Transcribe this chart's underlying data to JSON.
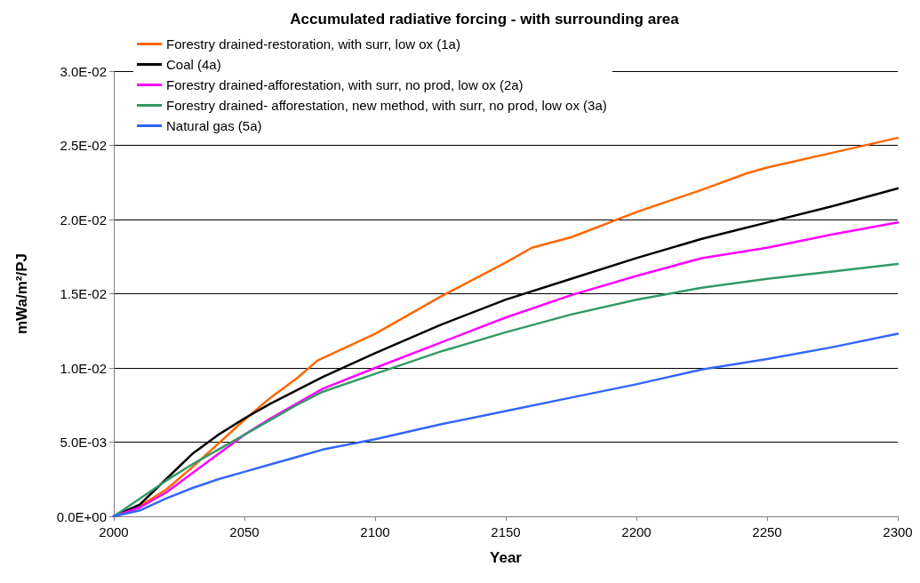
{
  "chart_data": {
    "type": "line",
    "title": "Accumulated radiative forcing - with surrounding area",
    "xlabel": "Year",
    "ylabel": "mWa/m²/PJ",
    "x": [
      2000,
      2010,
      2020,
      2030,
      2040,
      2050,
      2060,
      2070,
      2080,
      2100,
      2125,
      2150,
      2175,
      2200,
      2225,
      2250,
      2275,
      2300
    ],
    "series": [
      {
        "name": "Forestry drained-restoration, with surr, low ox (1a)",
        "color": "#ff6600",
        "x": [
          2000,
          2010,
          2020,
          2030,
          2040,
          2050,
          2060,
          2070,
          2078,
          2100,
          2125,
          2150,
          2160,
          2175,
          2200,
          2225,
          2242,
          2250,
          2275,
          2300
        ],
        "values": [
          0,
          0.0007,
          0.0018,
          0.0033,
          0.0049,
          0.0065,
          0.008,
          0.0093,
          0.0105,
          0.0123,
          0.0148,
          0.0171,
          0.0181,
          0.0188,
          0.0205,
          0.022,
          0.0231,
          0.0235,
          0.0245,
          0.0255
        ]
      },
      {
        "name": "Coal (4a)",
        "color": "#000000",
        "values": [
          0,
          0.0008,
          0.0025,
          0.0042,
          0.0055,
          0.0066,
          0.0076,
          0.0085,
          0.0094,
          0.011,
          0.0129,
          0.0146,
          0.016,
          0.0174,
          0.0187,
          0.0198,
          0.0209,
          0.0221
        ]
      },
      {
        "name": "Forestry drained-afforestation, with surr, no prod, low ox (2a)",
        "color": "#ff00ff",
        "values": [
          0,
          0.0006,
          0.0016,
          0.0029,
          0.0042,
          0.0055,
          0.0066,
          0.0076,
          0.0086,
          0.01,
          0.0117,
          0.0134,
          0.0149,
          0.0162,
          0.0174,
          0.0181,
          0.019,
          0.0198
        ]
      },
      {
        "name": "Forestry drained- afforestation, new method, with surr, no prod, low ox (3a)",
        "color": "#339966",
        "values": [
          0,
          0.0012,
          0.0024,
          0.0035,
          0.0045,
          0.0055,
          0.0065,
          0.0075,
          0.0084,
          0.0096,
          0.0111,
          0.0124,
          0.0136,
          0.0146,
          0.0154,
          0.016,
          0.0165,
          0.017
        ]
      },
      {
        "name": "Natural gas (5a)",
        "color": "#3366ff",
        "values": [
          0,
          0.0004,
          0.0012,
          0.0019,
          0.0025,
          0.003,
          0.0035,
          0.004,
          0.0045,
          0.0052,
          0.0062,
          0.0071,
          0.008,
          0.0089,
          0.0099,
          0.0106,
          0.0114,
          0.0123
        ]
      }
    ],
    "xlim": [
      2000,
      2300
    ],
    "xticks": [
      2000,
      2050,
      2100,
      2150,
      2200,
      2250,
      2300
    ],
    "ylim": [
      0,
      0.03
    ],
    "yticks": [
      {
        "value": 0,
        "label": "0.0E+00"
      },
      {
        "value": 0.005,
        "label": "5.0E-03"
      },
      {
        "value": 0.01,
        "label": "1.0E-02"
      },
      {
        "value": 0.015,
        "label": "1.5E-02"
      },
      {
        "value": 0.02,
        "label": "2.0E-02"
      },
      {
        "value": 0.025,
        "label": "2.5E-02"
      },
      {
        "value": 0.03,
        "label": "3.0E-02"
      }
    ],
    "grid": "y",
    "legend": "top left",
    "marker": "none",
    "line_style": "solid"
  }
}
